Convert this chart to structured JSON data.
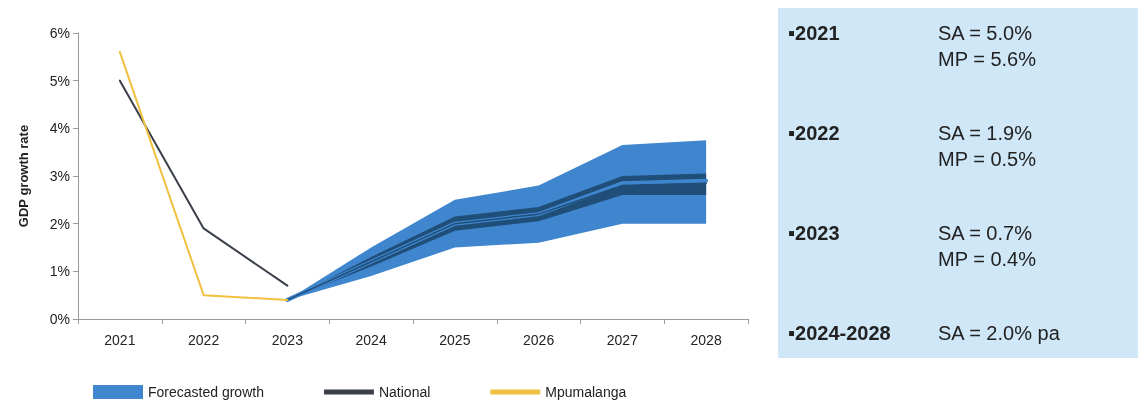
{
  "chart_data": {
    "type": "line",
    "ylabel": "GDP growth rate",
    "categories": [
      "2021",
      "2022",
      "2023",
      "2024",
      "2025",
      "2026",
      "2027",
      "2028"
    ],
    "ylim": [
      0,
      6
    ],
    "yticks": [
      {
        "value": 0,
        "label": "0%"
      },
      {
        "value": 1,
        "label": "1%"
      },
      {
        "value": 2,
        "label": "2%"
      },
      {
        "value": 3,
        "label": "3%"
      },
      {
        "value": 4,
        "label": "4%"
      },
      {
        "value": 5,
        "label": "5%"
      },
      {
        "value": 6,
        "label": "6%"
      }
    ],
    "legend": "bottom",
    "series": [
      {
        "name": "Forecasted growth",
        "color": "#3f86cf",
        "values": [
          null,
          null,
          0.4,
          1.2,
          2.0,
          2.2,
          2.85,
          2.9
        ],
        "lower": [
          null,
          null,
          0.4,
          0.9,
          1.5,
          1.6,
          2.0,
          2.0
        ],
        "upper": [
          null,
          null,
          0.4,
          1.5,
          2.5,
          2.8,
          3.65,
          3.75
        ]
      },
      {
        "color": "#1f4e79",
        "values": [
          null,
          null,
          0.4,
          1.2,
          2.0,
          2.2,
          2.8,
          2.85
        ],
        "lower": [
          null,
          null,
          0.4,
          1.1,
          1.85,
          2.05,
          2.6,
          2.6
        ],
        "upper": [
          null,
          null,
          0.4,
          1.3,
          2.15,
          2.35,
          3.0,
          3.05
        ]
      },
      {
        "name": "National",
        "color": "#3a3f4a",
        "values": [
          5.0,
          1.9,
          0.7,
          null,
          null,
          null,
          null,
          null
        ]
      },
      {
        "name": "Mpumalanga",
        "color": "#f0c040",
        "values": [
          5.6,
          0.5,
          0.4,
          null,
          null,
          null,
          null,
          null
        ]
      }
    ],
    "annotations": [
      "▪2021",
      "SA = 5.0%\nMP = 5.6%",
      "▪2022",
      "SA = 1.9%\nMP = 0.5%",
      "▪2023",
      "SA = 0.7%\nMP = 0.4%",
      "▪2024-2028",
      "SA = 2.0% pa"
    ]
  }
}
